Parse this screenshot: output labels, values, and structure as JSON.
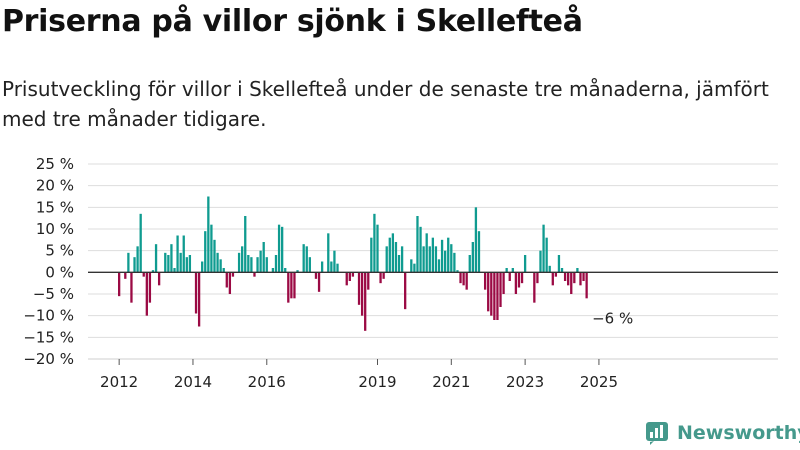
{
  "header": {
    "title": "Priserna på villor sjönk i Skellefteå",
    "subtitle": "Prisutveckling för villor i Skellefteå under de senaste tre månaderna, jämfört med tre månader tidigare."
  },
  "brand": {
    "name": "Newsworthy",
    "icon": "newsworthy-logo-icon"
  },
  "colors": {
    "positive": "#0f9b90",
    "negative": "#9b0a44",
    "grid": "#dddddd",
    "zero_line": "#333333",
    "text": "#222222"
  },
  "chart_data": {
    "type": "bar",
    "ylim": [
      -20,
      25
    ],
    "yticks": [
      -20,
      -15,
      -10,
      -5,
      0,
      5,
      10,
      15,
      20,
      25
    ],
    "ytick_labels": [
      "−20 %",
      "−15 %",
      "−10 %",
      "−5 %",
      "0 %",
      "5 %",
      "10 %",
      "15 %",
      "20 %",
      "25 %"
    ],
    "xtick_labels": [
      "2012",
      "2014",
      "2016",
      "2019",
      "2021",
      "2023",
      "2025"
    ],
    "xtick_positions": [
      "2012-01",
      "2014-01",
      "2016-01",
      "2019-01",
      "2021-01",
      "2023-01",
      "2025-01"
    ],
    "x_start": "2012-01",
    "annotation": {
      "text": "−6 %",
      "at": "2025-05"
    },
    "values": [
      -5.5,
      0,
      -1.5,
      4.5,
      -7,
      3.5,
      6,
      13.5,
      -1,
      -10,
      -7,
      0.5,
      6.5,
      -3,
      0,
      4.5,
      4,
      6.5,
      1,
      8.5,
      4.5,
      8.5,
      3.5,
      4,
      0,
      -9.5,
      -12.5,
      2.5,
      9.5,
      17.5,
      11,
      7.5,
      4.5,
      3,
      1,
      -3.5,
      -5,
      -1,
      0,
      4.5,
      6,
      13,
      4,
      3.5,
      -1,
      3.5,
      5,
      7,
      3.5,
      0,
      1,
      4,
      11,
      10.5,
      1,
      -7,
      -6,
      -6,
      0.5,
      0,
      6.5,
      6,
      3.5,
      0,
      -1.5,
      -4.5,
      2.5,
      0,
      9,
      2.5,
      5,
      2,
      0,
      0,
      -3,
      -2,
      -1,
      0,
      -7.5,
      -10,
      -13.5,
      -4,
      8,
      13.5,
      11,
      -2.5,
      -1.5,
      6,
      8,
      9,
      7,
      4,
      6,
      -8.5,
      0,
      3,
      2,
      13,
      10.5,
      6,
      9,
      6,
      8,
      6,
      3,
      7.5,
      5,
      8,
      6.5,
      4.5,
      0.5,
      -2.5,
      -3,
      -4,
      4,
      7,
      15,
      9.5,
      0,
      -4,
      -9,
      -10,
      -11,
      -11,
      -8,
      -5,
      1,
      -2,
      1,
      -5,
      -3.5,
      -2.5,
      4,
      0,
      0,
      -7,
      -2.5,
      5,
      11,
      8,
      1.5,
      -3,
      -1,
      4,
      1,
      -2,
      -3,
      -5,
      -2.5,
      1,
      -3,
      -2,
      -6
    ]
  }
}
